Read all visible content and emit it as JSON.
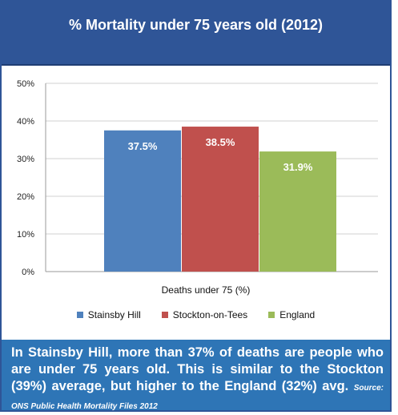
{
  "title": "% Mortality under 75 years old (2012)",
  "colors": {
    "title_bg": "#2f5597",
    "caption_bg": "#2e75b6",
    "stainsby_hill": "#4f81bd",
    "stockton": "#c0504d",
    "england": "#9bbb59"
  },
  "chart_data": {
    "type": "bar",
    "title": "% Mortality under 75 years old (2012)",
    "xlabel": "Deaths under 75 (%)",
    "ylabel": "",
    "ylim": [
      0,
      50
    ],
    "yticks": [
      "0%",
      "10%",
      "20%",
      "30%",
      "40%",
      "50%"
    ],
    "grid": true,
    "legend_position": "bottom",
    "categories": [
      "Deaths under 75 (%)"
    ],
    "series": [
      {
        "name": "Stainsby Hill",
        "values": [
          37.5
        ],
        "label": "37.5%",
        "color": "#4f81bd"
      },
      {
        "name": "Stockton-on-Tees",
        "values": [
          38.5
        ],
        "label": "38.5%",
        "color": "#c0504d"
      },
      {
        "name": "England",
        "values": [
          31.9
        ],
        "label": "31.9%",
        "color": "#9bbb59"
      }
    ]
  },
  "caption": {
    "text": "In Stainsby Hill, more than 37% of deaths are people who are under 75 years old. This is similar to the Stockton (39%) average, but higher to the England (32%) avg.",
    "source": "Source: ONS Public Health Mortality Files 2012"
  }
}
